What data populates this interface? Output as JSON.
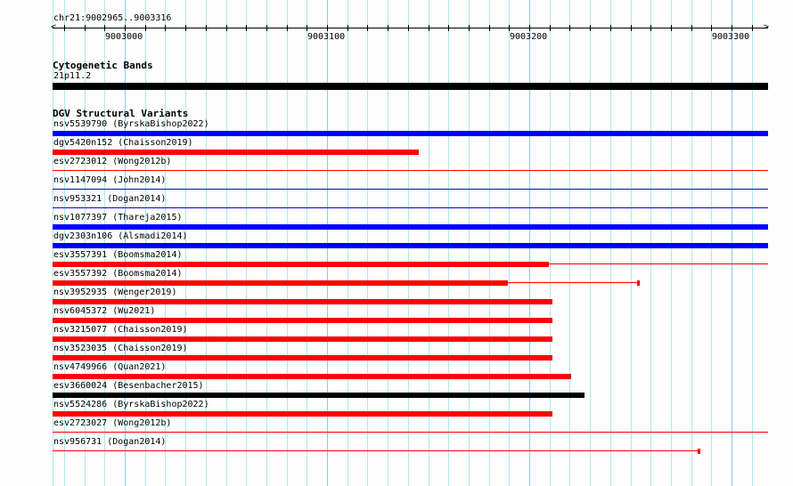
{
  "ruler": {
    "location": "chr21:9002965..9003316",
    "tick_labels": [
      "9003000",
      "9003100",
      "9003200",
      "9003300"
    ]
  },
  "cytoband": {
    "title": "Cytogenetic Bands",
    "band": "21p11.2"
  },
  "dgv": {
    "title": "DGV Structural Variants",
    "variants": [
      {
        "label": "nsv5539790 (ByrskaBishop2022)",
        "color": "#0000ff"
      },
      {
        "label": "dgv5420n152 (Chaisson2019)",
        "color": "#ff0000"
      },
      {
        "label": "esv2723012 (Wong2012b)",
        "color": "#ff0000"
      },
      {
        "label": "nsv1147094 (John2014)",
        "color": "#0000ff"
      },
      {
        "label": "nsv953321 (Dogan2014)",
        "color": "#0000ff"
      },
      {
        "label": "nsv1077397 (Thareja2015)",
        "color": "#0000ff"
      },
      {
        "label": "dgv2303n106 (Alsmadi2014)",
        "color": "#0000ff"
      },
      {
        "label": "esv3557391 (Boomsma2014)",
        "color": "#ff0000"
      },
      {
        "label": "esv3557392 (Boomsma2014)",
        "color": "#ff0000"
      },
      {
        "label": "nsv3952935 (Wenger2019)",
        "color": "#ff0000"
      },
      {
        "label": "nsv6045372 (Wu2021)",
        "color": "#ff0000"
      },
      {
        "label": "nsv3215077 (Chaisson2019)",
        "color": "#ff0000"
      },
      {
        "label": "nsv3523035 (Chaisson2019)",
        "color": "#ff0000"
      },
      {
        "label": "nsv4749966 (Quan2021)",
        "color": "#ff0000"
      },
      {
        "label": "esv3660024 (Besenbacher2015)",
        "color": "#000000"
      },
      {
        "label": "nsv5524286 (ByrskaBishop2022)",
        "color": "#ff0000"
      },
      {
        "label": "esv2723027 (Wong2012b)",
        "color": "#ff0000"
      },
      {
        "label": "nsv956731 (Dogan2014)",
        "color": "#ff0000"
      }
    ]
  }
}
